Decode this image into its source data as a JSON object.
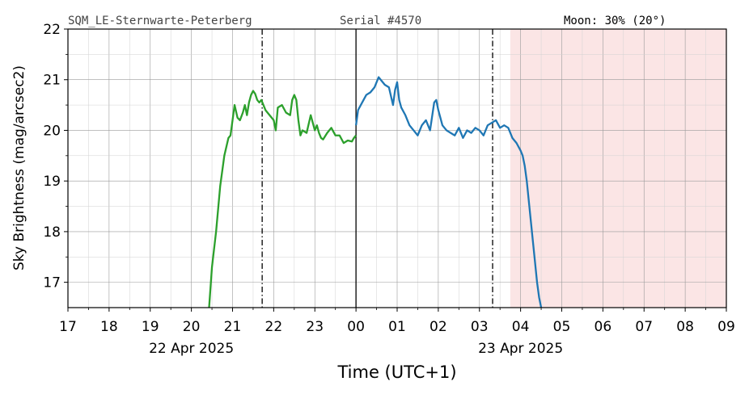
{
  "header": {
    "station": "SQM_LE-Sternwarte-Peterberg",
    "serial": "Serial #4570",
    "moon": "Moon: 30% (20°)"
  },
  "chart_data": {
    "type": "line",
    "title": "",
    "xlabel": "Time (UTC+1)",
    "ylabel": "Sky Brightness (mag/arcsec2)",
    "xlim": [
      17,
      33
    ],
    "ylim": [
      16.5,
      22
    ],
    "x_tick_labels": [
      "17",
      "18",
      "19",
      "20",
      "21",
      "22",
      "23",
      "00",
      "01",
      "02",
      "03",
      "04",
      "05",
      "06",
      "07",
      "08",
      "09"
    ],
    "date_labels": [
      {
        "text": "22 Apr 2025",
        "at": 20
      },
      {
        "text": "23 Apr 2025",
        "at": 28
      }
    ],
    "y_ticks": [
      17,
      18,
      19,
      20,
      21,
      22
    ],
    "y_minor_step": 0.5,
    "x_minor_step": 0.5,
    "grid": true,
    "colors": {
      "series_evening": "#2ca02c",
      "series_morning": "#1f77b4",
      "daylight_shade": "#fbe5e5",
      "midnight_line": "#000000",
      "twilight_line": "#000000"
    },
    "vertical_markers": {
      "astronomical_dusk": 21.72,
      "midnight": 24.0,
      "astronomical_dawn": 27.32
    },
    "shaded_region": [
      27.75,
      33
    ],
    "series": [
      {
        "color": "#2ca02c",
        "x": [
          20.43,
          20.5,
          20.6,
          20.7,
          20.8,
          20.9,
          20.95,
          21.0,
          21.05,
          21.12,
          21.18,
          21.25,
          21.3,
          21.35,
          21.4,
          21.45,
          21.5,
          21.55,
          21.6,
          21.65,
          21.7,
          21.75,
          21.8,
          21.9,
          22.0,
          22.05,
          22.1,
          22.2,
          22.3,
          22.4,
          22.45,
          22.5,
          22.55,
          22.6,
          22.65,
          22.7,
          22.8,
          22.9,
          23.0,
          23.05,
          23.1,
          23.15,
          23.2,
          23.3,
          23.4,
          23.5,
          23.6,
          23.7,
          23.8,
          23.9,
          23.95,
          24.0
        ],
        "y": [
          16.5,
          17.3,
          18.0,
          18.9,
          19.5,
          19.85,
          19.9,
          20.2,
          20.5,
          20.25,
          20.2,
          20.35,
          20.5,
          20.3,
          20.55,
          20.7,
          20.78,
          20.72,
          20.6,
          20.55,
          20.6,
          20.5,
          20.4,
          20.3,
          20.2,
          20.0,
          20.45,
          20.5,
          20.35,
          20.3,
          20.6,
          20.7,
          20.6,
          20.2,
          19.9,
          20.0,
          19.95,
          20.3,
          20.0,
          20.1,
          19.95,
          19.85,
          19.82,
          19.95,
          20.05,
          19.9,
          19.9,
          19.75,
          19.8,
          19.78,
          19.85,
          19.9
        ]
      },
      {
        "color": "#1f77b4",
        "x": [
          24.0,
          24.05,
          24.15,
          24.25,
          24.35,
          24.45,
          24.55,
          24.6,
          24.7,
          24.8,
          24.9,
          24.95,
          25.0,
          25.05,
          25.1,
          25.2,
          25.3,
          25.4,
          25.5,
          25.6,
          25.7,
          25.8,
          25.9,
          25.95,
          26.0,
          26.1,
          26.2,
          26.3,
          26.4,
          26.5,
          26.6,
          26.7,
          26.8,
          26.9,
          27.0,
          27.1,
          27.2,
          27.3,
          27.4,
          27.5,
          27.6,
          27.7,
          27.8,
          27.9,
          28.0,
          28.05,
          28.1,
          28.15,
          28.2,
          28.25,
          28.3,
          28.35,
          28.4,
          28.45,
          28.5
        ],
        "y": [
          20.1,
          20.4,
          20.55,
          20.7,
          20.75,
          20.85,
          21.05,
          21.0,
          20.9,
          20.85,
          20.5,
          20.8,
          20.95,
          20.6,
          20.45,
          20.3,
          20.1,
          20.0,
          19.9,
          20.1,
          20.2,
          20.0,
          20.55,
          20.6,
          20.4,
          20.1,
          20.0,
          19.95,
          19.9,
          20.05,
          19.85,
          20.0,
          19.95,
          20.05,
          20.0,
          19.9,
          20.1,
          20.15,
          20.2,
          20.05,
          20.1,
          20.05,
          19.85,
          19.75,
          19.6,
          19.5,
          19.3,
          19.0,
          18.6,
          18.2,
          17.8,
          17.4,
          17.0,
          16.7,
          16.5
        ]
      }
    ]
  }
}
